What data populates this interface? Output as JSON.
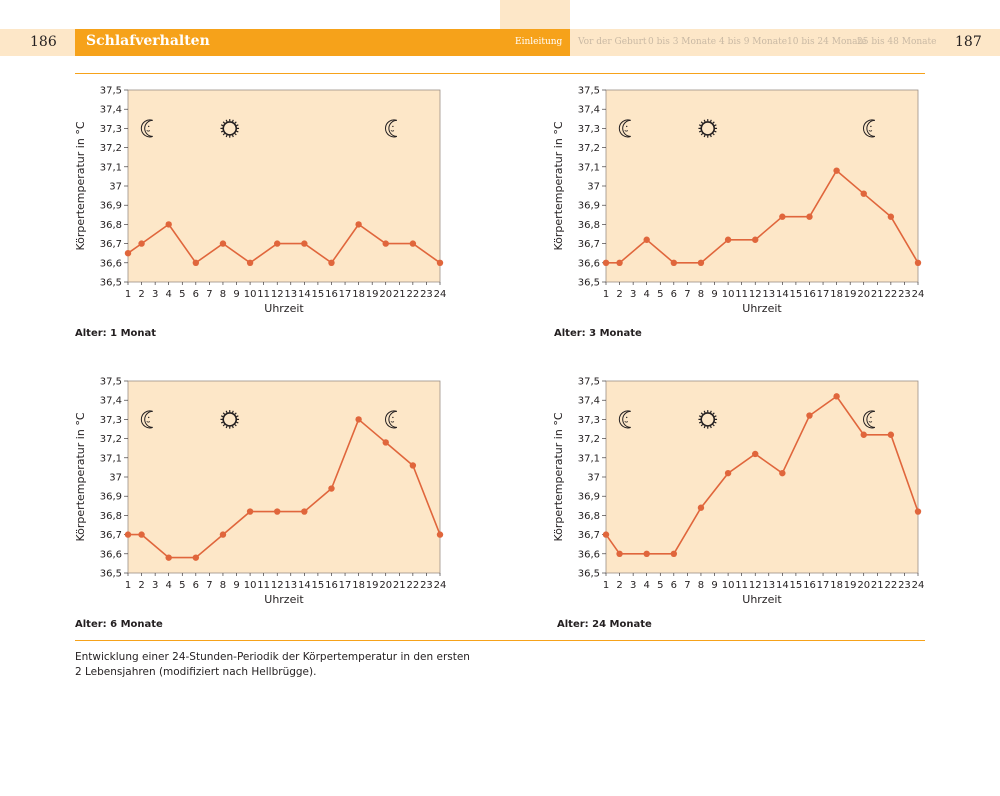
{
  "header": {
    "page_left": "186",
    "page_right": "187",
    "title": "Schlafverhalten",
    "tabs": [
      "Einleitung",
      "Vor der Geburt",
      "0 bis 3 Monate",
      "4 bis 9 Monate",
      "10 bis 24 Monate",
      "25 bis 48 Monate"
    ],
    "active_tab": "Einleitung"
  },
  "icons": {
    "night": "moon-icon",
    "day": "sun-icon"
  },
  "colors": {
    "accent": "#f6a21a",
    "header_band": "#fde7c8",
    "plot_background": "#fde7c8",
    "line": "#e0663c",
    "marker": "#e0663c"
  },
  "caption": {
    "line1": "Entwicklung einer 24-Stunden-Periodik der Körpertemperatur in den ersten",
    "line2": "2 Lebensjahren (modifiziert nach Hellbrügge)."
  },
  "chart_data": [
    {
      "type": "line",
      "label": "Alter: 1 Monat",
      "xlabel": "Uhrzeit",
      "ylabel": "Körpertemperatur in °C",
      "ylim": [
        36.5,
        37.5
      ],
      "yticks": [
        "36,5",
        "36,6",
        "36,7",
        "36,8",
        "36,9",
        "37",
        "37,1",
        "37,2",
        "37,3",
        "37,4",
        "37,5"
      ],
      "x": [
        1,
        2,
        3,
        4,
        5,
        6,
        7,
        8,
        9,
        10,
        11,
        12,
        13,
        14,
        15,
        16,
        17,
        18,
        19,
        20,
        21,
        22,
        23,
        24
      ],
      "points": [
        [
          1,
          36.65
        ],
        [
          2,
          36.7
        ],
        [
          4,
          36.8
        ],
        [
          6,
          36.6
        ],
        [
          8,
          36.7
        ],
        [
          10,
          36.6
        ],
        [
          12,
          36.7
        ],
        [
          14,
          36.7
        ],
        [
          16,
          36.6
        ],
        [
          18,
          36.8
        ],
        [
          20,
          36.7
        ],
        [
          22,
          36.7
        ],
        [
          24,
          36.6
        ]
      ],
      "grid": false
    },
    {
      "type": "line",
      "label": "Alter: 3 Monate",
      "xlabel": "Uhrzeit",
      "ylabel": "Körpertemperatur in °C",
      "ylim": [
        36.5,
        37.5
      ],
      "yticks": [
        "36,5",
        "36,6",
        "36,7",
        "36,8",
        "36,9",
        "37",
        "37,1",
        "37,2",
        "37,3",
        "37,4",
        "37,5"
      ],
      "x": [
        1,
        2,
        3,
        4,
        5,
        6,
        7,
        8,
        9,
        10,
        11,
        12,
        13,
        14,
        15,
        16,
        17,
        18,
        19,
        20,
        21,
        22,
        23,
        24
      ],
      "points": [
        [
          1,
          36.6
        ],
        [
          2,
          36.6
        ],
        [
          4,
          36.72
        ],
        [
          6,
          36.6
        ],
        [
          8,
          36.6
        ],
        [
          10,
          36.72
        ],
        [
          12,
          36.72
        ],
        [
          14,
          36.84
        ],
        [
          16,
          36.84
        ],
        [
          18,
          37.08
        ],
        [
          20,
          36.96
        ],
        [
          22,
          36.84
        ],
        [
          24,
          36.6
        ]
      ],
      "grid": false
    },
    {
      "type": "line",
      "label": "Alter: 6 Monate",
      "xlabel": "Uhrzeit",
      "ylabel": "Körpertemperatur in °C",
      "ylim": [
        36.5,
        37.5
      ],
      "yticks": [
        "36,5",
        "36,6",
        "36,7",
        "36,8",
        "36,9",
        "37",
        "37,1",
        "37,2",
        "37,3",
        "37,4",
        "37,5"
      ],
      "x": [
        1,
        2,
        3,
        4,
        5,
        6,
        7,
        8,
        9,
        10,
        11,
        12,
        13,
        14,
        15,
        16,
        17,
        18,
        19,
        20,
        21,
        22,
        23,
        24
      ],
      "points": [
        [
          1,
          36.7
        ],
        [
          2,
          36.7
        ],
        [
          4,
          36.58
        ],
        [
          6,
          36.58
        ],
        [
          8,
          36.7
        ],
        [
          10,
          36.82
        ],
        [
          12,
          36.82
        ],
        [
          14,
          36.82
        ],
        [
          16,
          36.94
        ],
        [
          18,
          37.3
        ],
        [
          20,
          37.18
        ],
        [
          22,
          37.06
        ],
        [
          24,
          36.7
        ]
      ],
      "grid": false
    },
    {
      "type": "line",
      "label": "Alter: 24 Monate",
      "xlabel": "Uhrzeit",
      "ylabel": "Körpertemperatur in °C",
      "ylim": [
        36.5,
        37.5
      ],
      "yticks": [
        "36,5",
        "36,6",
        "36,7",
        "36,8",
        "36,9",
        "37",
        "37,1",
        "37,2",
        "37,3",
        "37,4",
        "37,5"
      ],
      "x": [
        1,
        2,
        3,
        4,
        5,
        6,
        7,
        8,
        9,
        10,
        11,
        12,
        13,
        14,
        15,
        16,
        17,
        18,
        19,
        20,
        21,
        22,
        23,
        24
      ],
      "points": [
        [
          1,
          36.7
        ],
        [
          2,
          36.6
        ],
        [
          4,
          36.6
        ],
        [
          6,
          36.6
        ],
        [
          8,
          36.84
        ],
        [
          10,
          37.02
        ],
        [
          12,
          37.12
        ],
        [
          14,
          37.02
        ],
        [
          16,
          37.32
        ],
        [
          18,
          37.42
        ],
        [
          20,
          37.22
        ],
        [
          22,
          37.22
        ],
        [
          24,
          36.82
        ]
      ],
      "grid": false
    }
  ]
}
